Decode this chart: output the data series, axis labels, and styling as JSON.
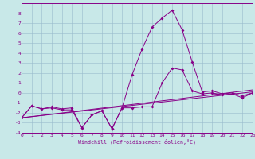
{
  "xlabel": "Windchill (Refroidissement éolien,°C)",
  "xlim": [
    0,
    23
  ],
  "ylim": [
    -4,
    9
  ],
  "xticks": [
    0,
    1,
    2,
    3,
    4,
    5,
    6,
    7,
    8,
    9,
    10,
    11,
    12,
    13,
    14,
    15,
    16,
    17,
    18,
    19,
    20,
    21,
    22,
    23
  ],
  "yticks": [
    -4,
    -3,
    -2,
    -1,
    0,
    1,
    2,
    3,
    4,
    5,
    6,
    7,
    8
  ],
  "bg_color": "#c8e8e8",
  "grid_color": "#99bbcc",
  "line_color": "#880088",
  "spine_color": "#880088",
  "lines": [
    {
      "x": [
        0,
        1,
        2,
        3,
        4,
        5,
        6,
        7,
        8,
        9,
        10,
        11,
        12,
        13,
        14,
        15,
        16,
        17,
        18,
        19,
        20,
        21,
        22,
        23
      ],
      "y": [
        -2.5,
        -1.3,
        -1.6,
        -1.5,
        -1.7,
        -1.7,
        -3.5,
        -2.2,
        -1.8,
        -3.6,
        -1.5,
        1.8,
        4.4,
        6.6,
        7.5,
        8.3,
        6.3,
        3.1,
        0.1,
        0.2,
        -0.1,
        0.0,
        -0.3,
        0.0
      ],
      "marker": true
    },
    {
      "x": [
        0,
        1,
        2,
        3,
        4,
        5,
        6,
        7,
        8,
        9,
        10,
        11,
        12,
        13,
        14,
        15,
        16,
        17,
        18,
        19,
        20,
        21,
        22,
        23
      ],
      "y": [
        -2.5,
        -1.3,
        -1.6,
        -1.4,
        -1.6,
        -1.5,
        -3.5,
        -2.2,
        -1.8,
        -3.6,
        -1.5,
        -1.5,
        -1.4,
        -1.4,
        1.0,
        2.5,
        2.3,
        0.2,
        -0.1,
        0.0,
        -0.2,
        -0.1,
        -0.5,
        0.0
      ],
      "marker": true
    },
    {
      "x": [
        0,
        23
      ],
      "y": [
        -2.5,
        0.1
      ],
      "marker": false
    },
    {
      "x": [
        0,
        23
      ],
      "y": [
        -2.5,
        0.3
      ],
      "marker": false
    }
  ],
  "tick_fontsize": 4.5,
  "xlabel_fontsize": 4.8,
  "lw": 0.7,
  "ms": 2.0
}
